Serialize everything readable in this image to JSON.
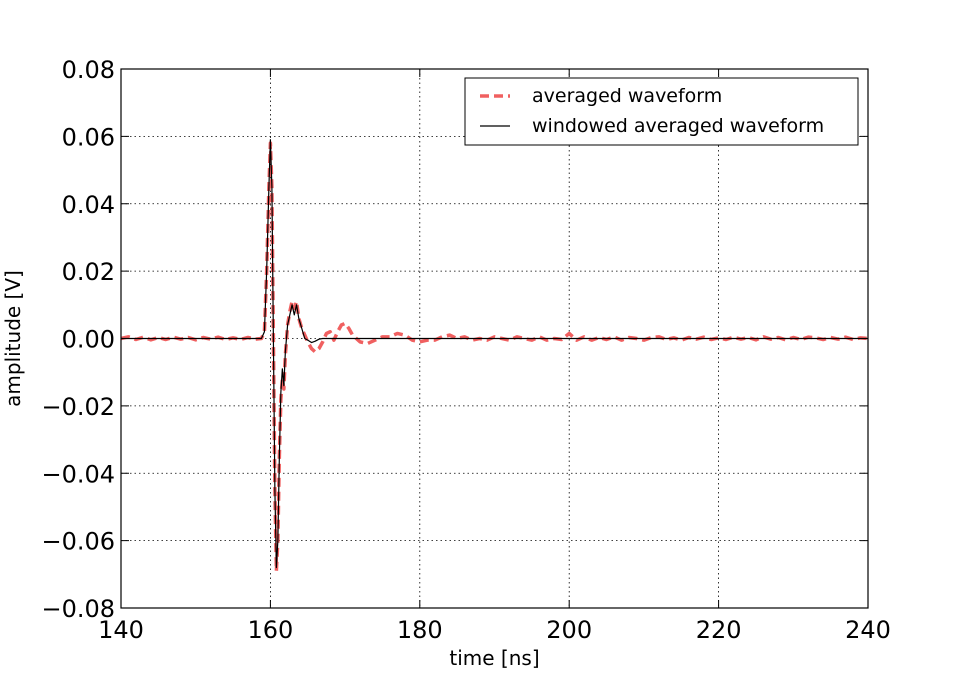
{
  "chart_data": {
    "type": "line",
    "title": "",
    "xlabel": "time [ns]",
    "ylabel": "amplitude [V]",
    "xlim": [
      140,
      240
    ],
    "ylim": [
      -0.08,
      0.08
    ],
    "x_ticks": [
      140,
      160,
      180,
      200,
      220,
      240
    ],
    "x_tick_labels": [
      "140",
      "160",
      "180",
      "200",
      "220",
      "240"
    ],
    "y_ticks": [
      -0.08,
      -0.06,
      -0.04,
      -0.02,
      0.0,
      0.02,
      0.04,
      0.06,
      0.08
    ],
    "y_tick_labels": [
      "−0.08",
      "−0.06",
      "−0.04",
      "−0.02",
      "0.00",
      "0.02",
      "0.04",
      "0.06",
      "0.08"
    ],
    "grid": true,
    "legend_position": "top-right",
    "series": [
      {
        "name": "averaged waveform",
        "color": "#f06060",
        "style": "dashed",
        "points": [
          [
            140,
            0.0
          ],
          [
            141,
            0.0005
          ],
          [
            142,
            -0.0003
          ],
          [
            143,
            0.0004
          ],
          [
            144,
            -0.0004
          ],
          [
            145,
            0.0003
          ],
          [
            146,
            -0.0003
          ],
          [
            147,
            0.0004
          ],
          [
            148,
            -0.0002
          ],
          [
            149,
            0.0003
          ],
          [
            150,
            -0.0004
          ],
          [
            151,
            0.0003
          ],
          [
            152,
            -0.0002
          ],
          [
            153,
            0.0004
          ],
          [
            154,
            -0.0003
          ],
          [
            155,
            0.0002
          ],
          [
            156,
            -0.0003
          ],
          [
            157,
            0.0003
          ],
          [
            158,
            -0.0002
          ],
          [
            158.8,
            0.0
          ],
          [
            159.2,
            0.002
          ],
          [
            159.5,
            0.02
          ],
          [
            159.8,
            0.045
          ],
          [
            160.0,
            0.058
          ],
          [
            160.2,
            0.045
          ],
          [
            160.4,
            0.0
          ],
          [
            160.6,
            -0.045
          ],
          [
            160.8,
            -0.069
          ],
          [
            161.0,
            -0.06
          ],
          [
            161.2,
            -0.035
          ],
          [
            161.4,
            -0.018
          ],
          [
            161.6,
            -0.012
          ],
          [
            161.8,
            -0.015
          ],
          [
            162.0,
            -0.005
          ],
          [
            162.3,
            0.004
          ],
          [
            162.6,
            0.008
          ],
          [
            162.9,
            0.011
          ],
          [
            163.2,
            0.009
          ],
          [
            163.5,
            0.011
          ],
          [
            163.8,
            0.006
          ],
          [
            164.2,
            0.003
          ],
          [
            164.6,
            0.001
          ],
          [
            165.0,
            -0.001
          ],
          [
            165.5,
            -0.003
          ],
          [
            166.0,
            -0.004
          ],
          [
            166.5,
            -0.003
          ],
          [
            167.0,
            -0.001
          ],
          [
            167.5,
            0.0015
          ],
          [
            168.0,
            0.002
          ],
          [
            168.5,
            -0.0005
          ],
          [
            169.0,
            0.002
          ],
          [
            169.5,
            0.004
          ],
          [
            170.0,
            0.0045
          ],
          [
            170.5,
            0.003
          ],
          [
            171.0,
            0.001
          ],
          [
            172.0,
            -0.001
          ],
          [
            173.0,
            -0.0015
          ],
          [
            174.0,
            -0.0005
          ],
          [
            175.0,
            0.0005
          ],
          [
            176.0,
            0.0005
          ],
          [
            177.0,
            0.0015
          ],
          [
            178.0,
            0.001
          ],
          [
            179.0,
            -0.0005
          ],
          [
            180.0,
            -0.001
          ],
          [
            181.0,
            -0.0005
          ],
          [
            182.0,
            -0.0005
          ],
          [
            183.0,
            0.0005
          ],
          [
            184.0,
            0.001
          ],
          [
            185.0,
            0.0
          ],
          [
            186.0,
            0.0005
          ],
          [
            187.0,
            -0.0005
          ],
          [
            188.0,
            0.0
          ],
          [
            189.0,
            -0.0005
          ],
          [
            190.0,
            0.0005
          ],
          [
            191.0,
            0.0
          ],
          [
            192.0,
            -0.0005
          ],
          [
            193.0,
            0.0005
          ],
          [
            194.0,
            0.0
          ],
          [
            195.0,
            -0.0005
          ],
          [
            196.0,
            0.0005
          ],
          [
            197.0,
            -0.0005
          ],
          [
            198.0,
            0.0
          ],
          [
            199.0,
            -0.0003
          ],
          [
            200.0,
            0.0015
          ],
          [
            201.0,
            -0.0005
          ],
          [
            202.0,
            0.0005
          ],
          [
            203.0,
            -0.0005
          ],
          [
            204.0,
            0.0003
          ],
          [
            205.0,
            -0.0003
          ],
          [
            206.0,
            0.0005
          ],
          [
            207.0,
            -0.0005
          ],
          [
            208.0,
            0.0003
          ],
          [
            209.0,
            0.0
          ],
          [
            210.0,
            -0.0005
          ],
          [
            211.0,
            0.0003
          ],
          [
            212.0,
            0.0005
          ],
          [
            213.0,
            -0.0003
          ],
          [
            214.0,
            0.0002
          ],
          [
            215.0,
            -0.0005
          ],
          [
            216.0,
            0.0003
          ],
          [
            217.0,
            -0.0002
          ],
          [
            218.0,
            0.0004
          ],
          [
            219.0,
            -0.0003
          ],
          [
            220.0,
            0.0002
          ],
          [
            221.0,
            -0.0003
          ],
          [
            222.0,
            0.0004
          ],
          [
            223.0,
            -0.0002
          ],
          [
            224.0,
            0.0003
          ],
          [
            225.0,
            -0.0004
          ],
          [
            226.0,
            0.0005
          ],
          [
            227.0,
            -0.0002
          ],
          [
            228.0,
            0.0003
          ],
          [
            229.0,
            -0.0004
          ],
          [
            230.0,
            0.0003
          ],
          [
            231.0,
            -0.0003
          ],
          [
            232.0,
            0.0004
          ],
          [
            233.0,
            0.0002
          ],
          [
            234.0,
            -0.0003
          ],
          [
            235.0,
            0.0003
          ],
          [
            236.0,
            -0.0002
          ],
          [
            237.0,
            0.0004
          ],
          [
            238.0,
            -0.0003
          ],
          [
            239.0,
            0.0002
          ],
          [
            240.0,
            0.0
          ]
        ]
      },
      {
        "name": "windowed averaged waveform",
        "color": "#000000",
        "style": "solid",
        "points": [
          [
            140,
            0.0
          ],
          [
            158.8,
            0.0
          ],
          [
            159.2,
            0.002
          ],
          [
            159.5,
            0.02
          ],
          [
            159.8,
            0.045
          ],
          [
            160.0,
            0.059
          ],
          [
            160.2,
            0.045
          ],
          [
            160.4,
            0.0
          ],
          [
            160.6,
            -0.045
          ],
          [
            160.8,
            -0.068
          ],
          [
            161.0,
            -0.06
          ],
          [
            161.2,
            -0.035
          ],
          [
            161.4,
            -0.016
          ],
          [
            161.6,
            -0.009
          ],
          [
            161.8,
            -0.014
          ],
          [
            162.0,
            -0.004
          ],
          [
            162.3,
            0.004
          ],
          [
            162.6,
            0.007
          ],
          [
            162.9,
            0.01
          ],
          [
            163.2,
            0.007
          ],
          [
            163.5,
            0.01
          ],
          [
            163.8,
            0.006
          ],
          [
            164.2,
            0.003
          ],
          [
            164.6,
            0.0
          ],
          [
            165.0,
            -0.0005
          ],
          [
            165.5,
            -0.0012
          ],
          [
            166.0,
            -0.0008
          ],
          [
            166.5,
            -0.0002
          ],
          [
            167.0,
            0.0
          ],
          [
            240.0,
            0.0
          ]
        ]
      }
    ]
  }
}
